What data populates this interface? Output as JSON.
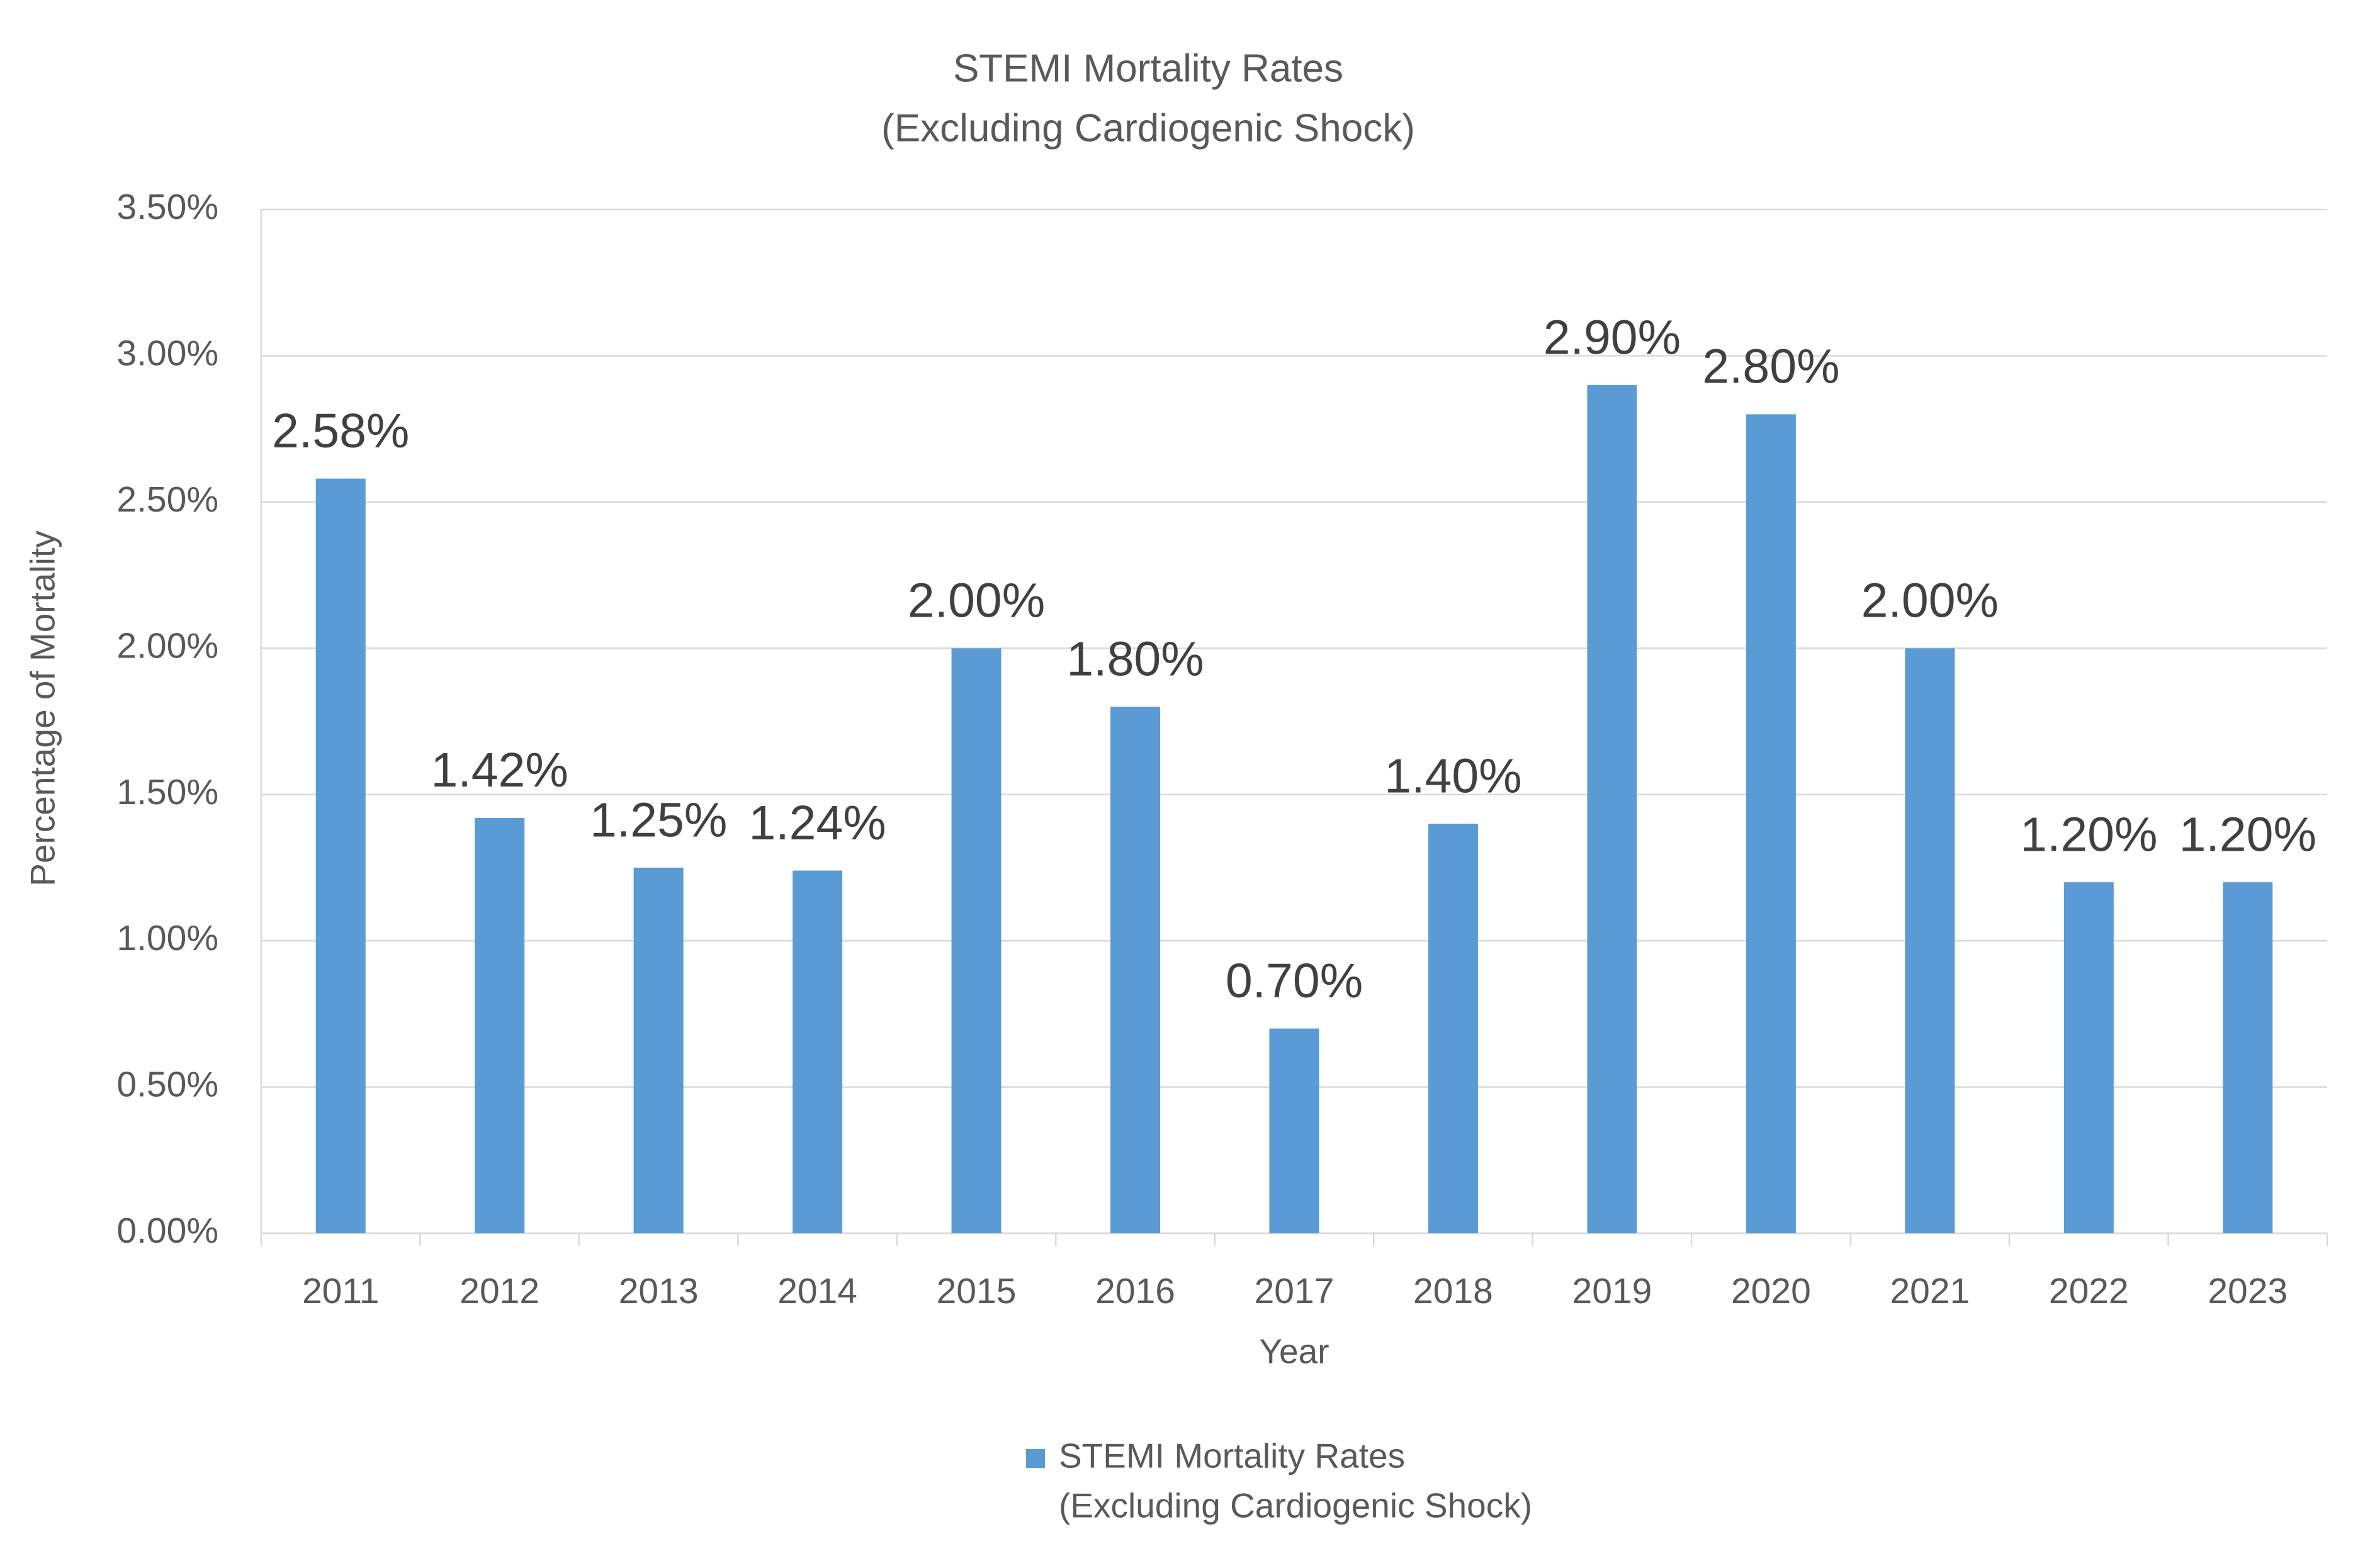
{
  "chart_data": {
    "type": "bar",
    "title": [
      "STEMI Mortality Rates",
      "(Excluding Cardiogenic Shock)"
    ],
    "x_label": "Year",
    "y_label": "Percentage of Mortality",
    "categories": [
      "2011",
      "2012",
      "2013",
      "2014",
      "2015",
      "2016",
      "2017",
      "2018",
      "2019",
      "2020",
      "2021",
      "2022",
      "2023"
    ],
    "series": [
      {
        "name": [
          "STEMI Mortality Rates",
          "(Excluding Cardiogenic Shock)"
        ],
        "color": "#5b9bd5",
        "values": [
          2.58,
          1.42,
          1.25,
          1.24,
          2.0,
          1.8,
          0.7,
          1.4,
          2.9,
          2.8,
          2.0,
          1.2,
          1.2
        ],
        "value_labels": [
          "2.58%",
          "1.42%",
          "1.25%",
          "1.24%",
          "2.00%",
          "1.80%",
          "0.70%",
          "1.40%",
          "2.90%",
          "2.80%",
          "2.00%",
          "1.20%",
          "1.20%"
        ]
      }
    ],
    "ylim": [
      0,
      3.5
    ],
    "yticks": [
      {
        "value": 0,
        "label": "0.00%"
      },
      {
        "value": 0.5,
        "label": "0.50%"
      },
      {
        "value": 1,
        "label": "1.00%"
      },
      {
        "value": 1.5,
        "label": "1.50%"
      },
      {
        "value": 2,
        "label": "2.00%"
      },
      {
        "value": 2.5,
        "label": "2.50%"
      },
      {
        "value": 3,
        "label": "3.00%"
      },
      {
        "value": 3.5,
        "label": "3.50%"
      }
    ],
    "grid": true,
    "legend": "bottom"
  }
}
